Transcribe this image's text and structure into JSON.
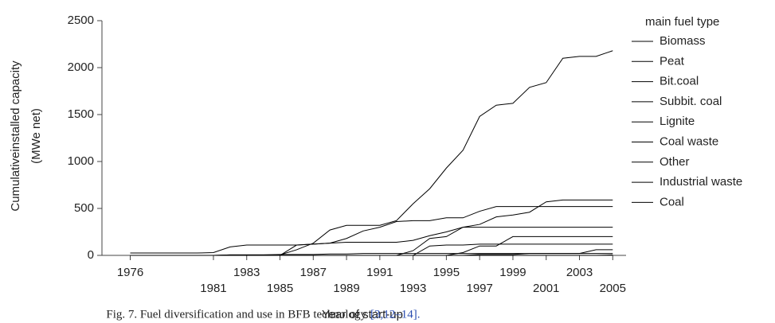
{
  "chart_data": {
    "type": "line",
    "y_label": [
      "Cumulativeinstalled capacity",
      "(MWe net)"
    ],
    "x_label": "Year of start-up",
    "legend_title": "main fuel type",
    "x": [
      1976,
      1977,
      1978,
      1979,
      1980,
      1981,
      1982,
      1983,
      1984,
      1985,
      1986,
      1987,
      1988,
      1989,
      1990,
      1991,
      1992,
      1993,
      1994,
      1995,
      1996,
      1997,
      1998,
      1999,
      2000,
      2001,
      2002,
      2003,
      2004,
      2005
    ],
    "xlim": [
      1974.3,
      2005.8
    ],
    "xticks": [
      1976,
      1981,
      1983,
      1985,
      1987,
      1989,
      1991,
      1993,
      1995,
      1997,
      1999,
      2001,
      2003,
      2005
    ],
    "ylim": [
      0,
      2500
    ],
    "yticks": [
      0,
      500,
      1000,
      1500,
      2000,
      2500
    ],
    "grid": false,
    "series": [
      {
        "name": "Biomass",
        "color": "#000000",
        "values": [
          0,
          0,
          0,
          0,
          0,
          0,
          5,
          5,
          5,
          5,
          60,
          130,
          270,
          320,
          320,
          320,
          370,
          550,
          710,
          930,
          1120,
          1480,
          1600,
          1620,
          1790,
          1840,
          2100,
          2120,
          2120,
          2180
        ]
      },
      {
        "name": "Peat",
        "color": "#000000",
        "values": [
          25,
          25,
          25,
          25,
          25,
          30,
          90,
          110,
          110,
          110,
          110,
          120,
          130,
          140,
          140,
          140,
          140,
          160,
          210,
          250,
          300,
          330,
          410,
          430,
          460,
          570,
          590,
          590,
          590,
          590
        ]
      },
      {
        "name": "Bit.coal",
        "color": "#000000",
        "values": [
          0,
          0,
          0,
          0,
          0,
          0,
          0,
          0,
          0,
          0,
          110,
          120,
          130,
          180,
          260,
          300,
          360,
          370,
          370,
          400,
          400,
          470,
          520,
          520,
          520,
          520,
          520,
          520,
          520,
          520
        ]
      },
      {
        "name": "Subbit. coal",
        "color": "#000000",
        "values": [
          0,
          0,
          0,
          0,
          0,
          0,
          0,
          0,
          0,
          0,
          0,
          0,
          0,
          0,
          0,
          0,
          0,
          50,
          180,
          200,
          300,
          300,
          300,
          300,
          300,
          300,
          300,
          300,
          300,
          300
        ]
      },
      {
        "name": "Lignite",
        "color": "#000000",
        "values": [
          0,
          0,
          0,
          0,
          0,
          0,
          0,
          0,
          0,
          0,
          0,
          0,
          0,
          0,
          0,
          0,
          0,
          0,
          0,
          0,
          30,
          100,
          100,
          200,
          200,
          200,
          200,
          200,
          200,
          200
        ]
      },
      {
        "name": "Coal waste",
        "color": "#000000",
        "values": [
          0,
          0,
          0,
          0,
          0,
          0,
          0,
          0,
          0,
          0,
          0,
          0,
          0,
          0,
          0,
          0,
          0,
          0,
          100,
          110,
          110,
          120,
          120,
          120,
          120,
          120,
          120,
          120,
          120,
          120
        ]
      },
      {
        "name": "Other",
        "color": "#000000",
        "values": [
          0,
          0,
          0,
          0,
          0,
          0,
          5,
          5,
          5,
          10,
          10,
          10,
          15,
          15,
          20,
          20,
          20,
          20,
          20,
          20,
          20,
          20,
          20,
          20,
          20,
          20,
          20,
          20,
          60,
          60
        ]
      },
      {
        "name": "Industrial waste",
        "color": "#000000",
        "values": [
          0,
          0,
          0,
          0,
          0,
          0,
          0,
          0,
          0,
          0,
          0,
          0,
          0,
          0,
          0,
          0,
          0,
          0,
          0,
          0,
          0,
          10,
          10,
          10,
          20,
          20,
          20,
          20,
          20,
          20
        ]
      },
      {
        "name": "Coal",
        "color": "#000000",
        "values": [
          0,
          0,
          0,
          0,
          0,
          0,
          0,
          0,
          0,
          0,
          0,
          0,
          0,
          0,
          0,
          0,
          0,
          0,
          0,
          0,
          0,
          0,
          0,
          0,
          0,
          0,
          0,
          0,
          0,
          5
        ]
      }
    ]
  },
  "caption": {
    "text": "Fig. 7.  Fuel diversification and use in BFB technology",
    "ref": "[3,12–14]."
  }
}
